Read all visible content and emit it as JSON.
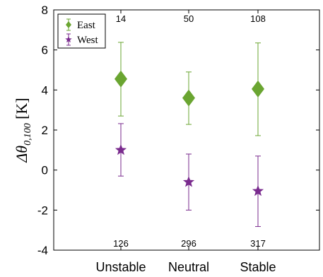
{
  "chart_data": {
    "type": "scatter",
    "title": "",
    "xlabel": "",
    "ylabel": {
      "base": "Δθ",
      "subscript": "0,100",
      "unit": " [K]"
    },
    "categories": [
      "Unstable",
      "Neutral",
      "Stable"
    ],
    "ylim": [
      -4,
      8
    ],
    "yticks": [
      -4,
      -2,
      0,
      2,
      4,
      6,
      8
    ],
    "grid": false,
    "legend_position": "top-left",
    "series": [
      {
        "name": "East",
        "marker": "diamond",
        "color": "#6aa531",
        "values": [
          4.55,
          3.6,
          4.05
        ],
        "lower": [
          2.7,
          2.28,
          1.72
        ],
        "upper": [
          6.38,
          4.9,
          6.35
        ],
        "counts": [
          "14",
          "50",
          "108"
        ]
      },
      {
        "name": "West",
        "marker": "star",
        "color": "#7a2b8e",
        "values": [
          1.0,
          -0.6,
          -1.05
        ],
        "lower": [
          -0.3,
          -2.0,
          -2.82
        ],
        "upper": [
          2.32,
          0.8,
          0.7
        ],
        "counts": [
          "126",
          "296",
          "317"
        ]
      }
    ]
  }
}
